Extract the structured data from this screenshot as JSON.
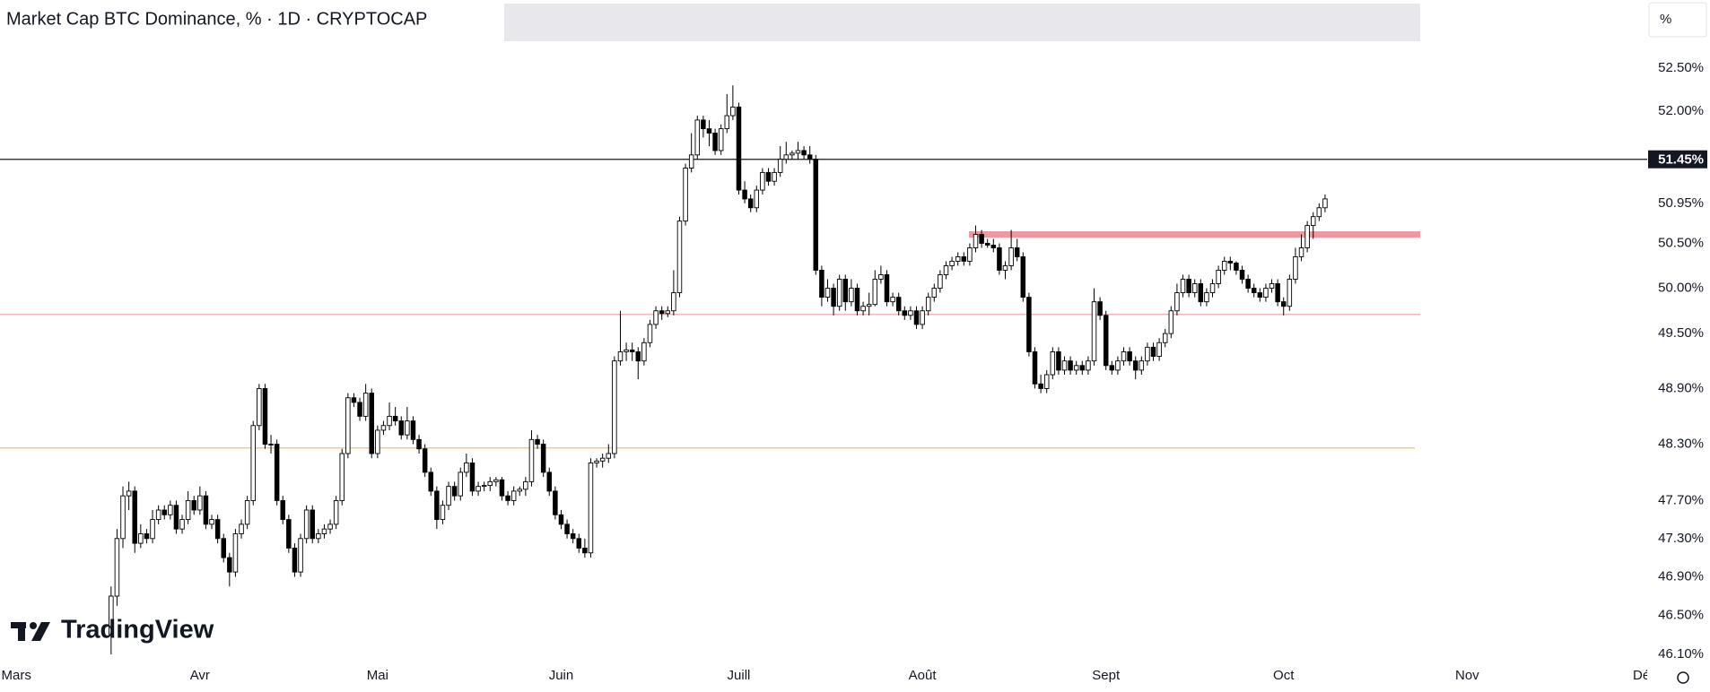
{
  "chart_data": {
    "type": "candlestick",
    "title": "Market Cap BTC Dominance, % · 1D · CRYPTOCAP",
    "scale_label": "%",
    "watermark": "TradingView",
    "up_color": "#ffffff",
    "down_color": "#000000",
    "wick_color": "#000000",
    "log_scale": true,
    "grid": false,
    "ylim": [
      46.0,
      53.3
    ],
    "yticks": [
      {
        "value": 52.5,
        "label": "52.50%"
      },
      {
        "value": 52.0,
        "label": "52.00%"
      },
      {
        "value": 50.95,
        "label": "50.95%"
      },
      {
        "value": 50.5,
        "label": "50.50%"
      },
      {
        "value": 50.0,
        "label": "50.00%"
      },
      {
        "value": 49.5,
        "label": "49.50%"
      },
      {
        "value": 48.9,
        "label": "48.90%"
      },
      {
        "value": 48.3,
        "label": "48.30%"
      },
      {
        "value": 47.7,
        "label": "47.70%"
      },
      {
        "value": 47.3,
        "label": "47.30%"
      },
      {
        "value": 46.9,
        "label": "46.90%"
      },
      {
        "value": 46.5,
        "label": "46.50%"
      },
      {
        "value": 46.1,
        "label": "46.10%"
      }
    ],
    "xlim": [
      -18.76,
      259.4
    ],
    "xticks": [
      {
        "value": -16,
        "label": "Mars"
      },
      {
        "value": 15,
        "label": "Avr"
      },
      {
        "value": 45,
        "label": "Mai"
      },
      {
        "value": 76,
        "label": "Juin"
      },
      {
        "value": 106,
        "label": "Juill"
      },
      {
        "value": 137,
        "label": "Août"
      },
      {
        "value": 168,
        "label": "Sept"
      },
      {
        "value": 198,
        "label": "Oct"
      },
      {
        "value": 229,
        "label": "Nov"
      },
      {
        "value": 259,
        "label": "Déc"
      }
    ],
    "hlines": [
      {
        "value": 51.45,
        "label": "51.45%",
        "color": "#131722"
      },
      {
        "value": 49.71,
        "color": "#f59aa1"
      },
      {
        "value": 48.26,
        "color": "#f5c060"
      }
    ],
    "zones": [
      {
        "value": 50.6,
        "color": "#eb9aa0"
      }
    ],
    "ohlc": [
      [
        46.3,
        46.8,
        46.1,
        46.7
      ],
      [
        46.7,
        47.4,
        46.6,
        47.3
      ],
      [
        47.3,
        47.85,
        47.2,
        47.75
      ],
      [
        47.75,
        47.9,
        47.6,
        47.8
      ],
      [
        47.8,
        47.85,
        47.15,
        47.25
      ],
      [
        47.25,
        47.45,
        47.2,
        47.35
      ],
      [
        47.35,
        47.4,
        47.25,
        47.3
      ],
      [
        47.3,
        47.6,
        47.25,
        47.5
      ],
      [
        47.5,
        47.65,
        47.45,
        47.6
      ],
      [
        47.6,
        47.65,
        47.5,
        47.55
      ],
      [
        47.55,
        47.7,
        47.5,
        47.65
      ],
      [
        47.65,
        47.7,
        47.35,
        47.4
      ],
      [
        47.4,
        47.55,
        47.35,
        47.5
      ],
      [
        47.5,
        47.8,
        47.45,
        47.7
      ],
      [
        47.7,
        47.75,
        47.55,
        47.6
      ],
      [
        47.6,
        47.85,
        47.55,
        47.75
      ],
      [
        47.75,
        47.8,
        47.4,
        47.45
      ],
      [
        47.45,
        47.55,
        47.4,
        47.5
      ],
      [
        47.5,
        47.55,
        47.25,
        47.3
      ],
      [
        47.3,
        47.35,
        47.05,
        47.1
      ],
      [
        47.1,
        47.15,
        46.8,
        46.95
      ],
      [
        46.95,
        47.4,
        46.9,
        47.35
      ],
      [
        47.35,
        47.5,
        47.3,
        47.45
      ],
      [
        47.45,
        47.75,
        47.4,
        47.7
      ],
      [
        47.7,
        48.55,
        47.65,
        48.5
      ],
      [
        48.5,
        48.95,
        48.45,
        48.9
      ],
      [
        48.9,
        48.95,
        48.25,
        48.3
      ],
      [
        48.3,
        48.4,
        48.2,
        48.3
      ],
      [
        48.3,
        48.35,
        47.65,
        47.7
      ],
      [
        47.7,
        47.75,
        47.45,
        47.5
      ],
      [
        47.5,
        47.55,
        47.15,
        47.2
      ],
      [
        47.2,
        47.25,
        46.9,
        46.95
      ],
      [
        46.95,
        47.35,
        46.9,
        47.3
      ],
      [
        47.3,
        47.65,
        47.25,
        47.6
      ],
      [
        47.6,
        47.65,
        47.25,
        47.3
      ],
      [
        47.3,
        47.4,
        47.25,
        47.35
      ],
      [
        47.35,
        47.45,
        47.3,
        47.4
      ],
      [
        47.4,
        47.5,
        47.35,
        47.45
      ],
      [
        47.45,
        47.75,
        47.4,
        47.7
      ],
      [
        47.7,
        48.25,
        47.65,
        48.2
      ],
      [
        48.2,
        48.85,
        48.15,
        48.8
      ],
      [
        48.8,
        48.85,
        48.7,
        48.75
      ],
      [
        48.75,
        48.8,
        48.55,
        48.6
      ],
      [
        48.6,
        48.95,
        48.55,
        48.85
      ],
      [
        48.85,
        48.9,
        48.15,
        48.2
      ],
      [
        48.2,
        48.5,
        48.15,
        48.45
      ],
      [
        48.45,
        48.55,
        48.4,
        48.5
      ],
      [
        48.5,
        48.75,
        48.45,
        48.6
      ],
      [
        48.6,
        48.7,
        48.5,
        48.55
      ],
      [
        48.55,
        48.6,
        48.35,
        48.4
      ],
      [
        48.4,
        48.7,
        48.35,
        48.55
      ],
      [
        48.55,
        48.6,
        48.3,
        48.35
      ],
      [
        48.35,
        48.4,
        48.2,
        48.25
      ],
      [
        48.25,
        48.3,
        47.95,
        48.0
      ],
      [
        48.0,
        48.05,
        47.75,
        47.8
      ],
      [
        47.8,
        47.85,
        47.4,
        47.5
      ],
      [
        47.5,
        47.7,
        47.45,
        47.65
      ],
      [
        47.65,
        47.9,
        47.6,
        47.85
      ],
      [
        47.85,
        47.9,
        47.7,
        47.75
      ],
      [
        47.75,
        48.05,
        47.7,
        48.0
      ],
      [
        48.0,
        48.2,
        47.95,
        48.1
      ],
      [
        48.1,
        48.15,
        47.75,
        47.8
      ],
      [
        47.8,
        47.9,
        47.75,
        47.85
      ],
      [
        47.85,
        47.9,
        47.8,
        47.86
      ],
      [
        47.86,
        47.95,
        47.8,
        47.9
      ],
      [
        47.9,
        47.95,
        47.85,
        47.92
      ],
      [
        47.92,
        47.95,
        47.7,
        47.75
      ],
      [
        47.75,
        47.8,
        47.65,
        47.7
      ],
      [
        47.7,
        47.85,
        47.65,
        47.8
      ],
      [
        47.8,
        47.85,
        47.75,
        47.82
      ],
      [
        47.82,
        47.95,
        47.75,
        47.9
      ],
      [
        47.9,
        48.45,
        47.85,
        48.35
      ],
      [
        48.35,
        48.4,
        48.25,
        48.3
      ],
      [
        48.3,
        48.35,
        47.95,
        48.0
      ],
      [
        48.0,
        48.05,
        47.75,
        47.8
      ],
      [
        47.8,
        47.85,
        47.5,
        47.55
      ],
      [
        47.55,
        47.6,
        47.4,
        47.45
      ],
      [
        47.45,
        47.5,
        47.3,
        47.35
      ],
      [
        47.35,
        47.4,
        47.25,
        47.3
      ],
      [
        47.3,
        47.35,
        47.15,
        47.2
      ],
      [
        47.2,
        47.3,
        47.1,
        47.15
      ],
      [
        47.15,
        48.15,
        47.1,
        48.1
      ],
      [
        48.1,
        48.15,
        48.05,
        48.12
      ],
      [
        48.12,
        48.2,
        48.05,
        48.15
      ],
      [
        48.15,
        48.3,
        48.1,
        48.2
      ],
      [
        48.2,
        49.25,
        48.15,
        49.2
      ],
      [
        49.2,
        49.75,
        49.15,
        49.3
      ],
      [
        49.3,
        49.4,
        49.2,
        49.32
      ],
      [
        49.32,
        49.4,
        49.2,
        49.3
      ],
      [
        49.3,
        49.35,
        49.0,
        49.2
      ],
      [
        49.2,
        49.45,
        49.15,
        49.4
      ],
      [
        49.4,
        49.65,
        49.35,
        49.6
      ],
      [
        49.6,
        49.8,
        49.55,
        49.75
      ],
      [
        49.75,
        49.8,
        49.65,
        49.72
      ],
      [
        49.72,
        49.8,
        49.68,
        49.75
      ],
      [
        49.75,
        50.2,
        49.7,
        49.95
      ],
      [
        49.95,
        50.8,
        49.9,
        50.75
      ],
      [
        50.75,
        51.4,
        50.7,
        51.35
      ],
      [
        51.35,
        51.75,
        51.3,
        51.5
      ],
      [
        51.5,
        51.95,
        51.45,
        51.9
      ],
      [
        51.9,
        51.95,
        51.7,
        51.8
      ],
      [
        51.8,
        51.9,
        51.6,
        51.75
      ],
      [
        51.75,
        51.8,
        51.5,
        51.55
      ],
      [
        51.55,
        51.85,
        51.5,
        51.8
      ],
      [
        51.8,
        52.2,
        51.75,
        51.95
      ],
      [
        51.95,
        52.3,
        51.9,
        52.05
      ],
      [
        52.05,
        52.1,
        51.05,
        51.1
      ],
      [
        51.1,
        51.2,
        50.95,
        51.0
      ],
      [
        51.0,
        51.05,
        50.85,
        50.9
      ],
      [
        50.9,
        51.15,
        50.85,
        51.1
      ],
      [
        51.1,
        51.35,
        51.05,
        51.3
      ],
      [
        51.3,
        51.35,
        51.15,
        51.2
      ],
      [
        51.2,
        51.35,
        51.15,
        51.3
      ],
      [
        51.3,
        51.6,
        51.25,
        51.45
      ],
      [
        51.45,
        51.65,
        51.4,
        51.5
      ],
      [
        51.5,
        51.55,
        51.45,
        51.52
      ],
      [
        51.52,
        51.65,
        51.45,
        51.55
      ],
      [
        51.55,
        51.6,
        51.45,
        51.5
      ],
      [
        51.5,
        51.6,
        51.4,
        51.45
      ],
      [
        51.45,
        51.5,
        50.15,
        50.2
      ],
      [
        50.2,
        50.25,
        49.8,
        49.9
      ],
      [
        49.9,
        50.1,
        49.85,
        50.0
      ],
      [
        50.0,
        50.05,
        49.7,
        49.8
      ],
      [
        49.8,
        50.15,
        49.75,
        50.1
      ],
      [
        50.1,
        50.15,
        49.75,
        49.85
      ],
      [
        49.85,
        50.1,
        49.8,
        50.0
      ],
      [
        50.0,
        50.05,
        49.7,
        49.75
      ],
      [
        49.75,
        49.85,
        49.7,
        49.8
      ],
      [
        49.8,
        49.95,
        49.7,
        49.82
      ],
      [
        49.82,
        50.2,
        49.8,
        50.1
      ],
      [
        50.1,
        50.25,
        50.05,
        50.15
      ],
      [
        50.15,
        50.2,
        49.8,
        49.85
      ],
      [
        49.85,
        49.95,
        49.8,
        49.9
      ],
      [
        49.9,
        49.95,
        49.7,
        49.75
      ],
      [
        49.75,
        49.8,
        49.65,
        49.7
      ],
      [
        49.7,
        49.8,
        49.65,
        49.75
      ],
      [
        49.75,
        49.8,
        49.55,
        49.6
      ],
      [
        49.6,
        49.8,
        49.55,
        49.75
      ],
      [
        49.75,
        49.95,
        49.7,
        49.9
      ],
      [
        49.9,
        50.05,
        49.85,
        50.0
      ],
      [
        50.0,
        50.2,
        49.95,
        50.15
      ],
      [
        50.15,
        50.3,
        50.1,
        50.25
      ],
      [
        50.25,
        50.35,
        50.2,
        50.3
      ],
      [
        50.3,
        50.4,
        50.25,
        50.35
      ],
      [
        50.35,
        50.4,
        50.25,
        50.3
      ],
      [
        50.3,
        50.5,
        50.25,
        50.45
      ],
      [
        50.45,
        50.7,
        50.4,
        50.6
      ],
      [
        50.6,
        50.65,
        50.45,
        50.5
      ],
      [
        50.5,
        50.55,
        50.45,
        50.48
      ],
      [
        50.48,
        50.55,
        50.4,
        50.45
      ],
      [
        50.45,
        50.5,
        50.15,
        50.2
      ],
      [
        50.2,
        50.3,
        50.1,
        50.25
      ],
      [
        50.25,
        50.65,
        50.2,
        50.45
      ],
      [
        50.45,
        50.55,
        50.3,
        50.35
      ],
      [
        50.35,
        50.4,
        49.85,
        49.9
      ],
      [
        49.9,
        49.95,
        49.25,
        49.3
      ],
      [
        49.3,
        49.35,
        48.9,
        48.95
      ],
      [
        48.95,
        49.05,
        48.85,
        48.9
      ],
      [
        48.9,
        49.1,
        48.85,
        49.05
      ],
      [
        49.05,
        49.35,
        49.0,
        49.3
      ],
      [
        49.3,
        49.35,
        49.05,
        49.1
      ],
      [
        49.1,
        49.25,
        49.05,
        49.2
      ],
      [
        49.2,
        49.25,
        49.05,
        49.1
      ],
      [
        49.1,
        49.2,
        49.05,
        49.15
      ],
      [
        49.15,
        49.2,
        49.05,
        49.1
      ],
      [
        49.1,
        49.25,
        49.05,
        49.2
      ],
      [
        49.2,
        50.0,
        49.15,
        49.85
      ],
      [
        49.85,
        49.9,
        49.65,
        49.7
      ],
      [
        49.7,
        49.75,
        49.1,
        49.15
      ],
      [
        49.15,
        49.2,
        49.05,
        49.1
      ],
      [
        49.1,
        49.25,
        49.05,
        49.2
      ],
      [
        49.2,
        49.35,
        49.15,
        49.3
      ],
      [
        49.3,
        49.35,
        49.15,
        49.2
      ],
      [
        49.2,
        49.25,
        49.0,
        49.1
      ],
      [
        49.1,
        49.25,
        49.05,
        49.2
      ],
      [
        49.2,
        49.4,
        49.15,
        49.35
      ],
      [
        49.35,
        49.4,
        49.2,
        49.25
      ],
      [
        49.25,
        49.45,
        49.2,
        49.4
      ],
      [
        49.4,
        49.55,
        49.35,
        49.5
      ],
      [
        49.5,
        49.8,
        49.45,
        49.75
      ],
      [
        49.75,
        50.05,
        49.7,
        49.95
      ],
      [
        49.95,
        50.15,
        49.9,
        50.1
      ],
      [
        50.1,
        50.15,
        49.9,
        49.95
      ],
      [
        49.95,
        50.1,
        49.9,
        50.05
      ],
      [
        50.05,
        50.1,
        49.8,
        49.85
      ],
      [
        49.85,
        50.0,
        49.8,
        49.95
      ],
      [
        49.95,
        50.1,
        49.9,
        50.05
      ],
      [
        50.05,
        50.25,
        50.0,
        50.2
      ],
      [
        50.2,
        50.35,
        50.15,
        50.3
      ],
      [
        50.3,
        50.35,
        50.2,
        50.28
      ],
      [
        50.28,
        50.3,
        50.15,
        50.2
      ],
      [
        50.2,
        50.25,
        50.05,
        50.1
      ],
      [
        50.1,
        50.15,
        49.95,
        50.0
      ],
      [
        50.0,
        50.05,
        49.9,
        49.95
      ],
      [
        49.95,
        50.0,
        49.85,
        49.9
      ],
      [
        49.9,
        50.05,
        49.85,
        50.0
      ],
      [
        50.0,
        50.1,
        49.95,
        50.05
      ],
      [
        50.05,
        50.1,
        49.8,
        49.85
      ],
      [
        49.85,
        49.9,
        49.7,
        49.8
      ],
      [
        49.8,
        50.15,
        49.75,
        50.1
      ],
      [
        50.1,
        50.45,
        50.05,
        50.35
      ],
      [
        50.35,
        50.6,
        50.3,
        50.45
      ],
      [
        50.45,
        50.75,
        50.4,
        50.7
      ],
      [
        50.7,
        50.85,
        50.55,
        50.8
      ],
      [
        50.8,
        50.95,
        50.75,
        50.9
      ],
      [
        50.9,
        51.05,
        50.85,
        51.0
      ]
    ]
  }
}
